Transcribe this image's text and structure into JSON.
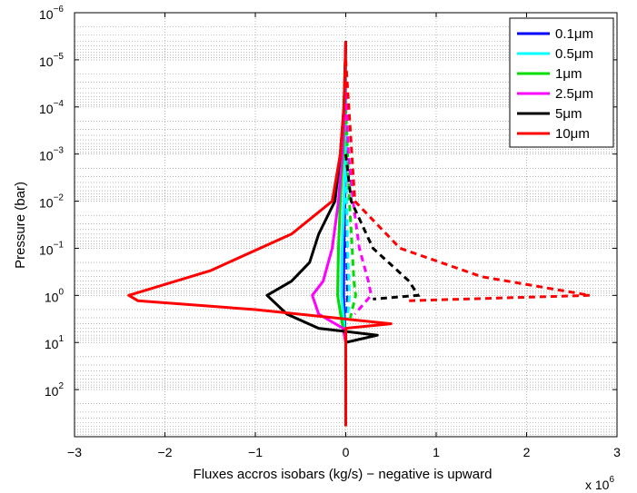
{
  "chart_data": {
    "type": "line",
    "xlabel": "Fluxes accros isobars  (kg/s)  − negative is upward",
    "ylabel": "Pressure (bar)",
    "x_multiplier_label": "x 10",
    "x_multiplier_exp": "6",
    "x_multiplier": 1000000,
    "xlim": [
      -3000000,
      3000000
    ],
    "ylim_bar": [
      1e-06,
      1000
    ],
    "y_scale": "log",
    "y_reversed": true,
    "grid": true,
    "x_ticks": [
      {
        "value": -3000000,
        "label": "−3"
      },
      {
        "value": -2000000,
        "label": "−2"
      },
      {
        "value": -1000000,
        "label": "−1"
      },
      {
        "value": 0,
        "label": "0"
      },
      {
        "value": 1000000,
        "label": "1"
      },
      {
        "value": 2000000,
        "label": "2"
      },
      {
        "value": 3000000,
        "label": "3"
      }
    ],
    "y_ticks": [
      {
        "value": 1e-06,
        "base": "10",
        "exp": "−6"
      },
      {
        "value": 1e-05,
        "base": "10",
        "exp": "−5"
      },
      {
        "value": 0.0001,
        "base": "10",
        "exp": "−4"
      },
      {
        "value": 0.001,
        "base": "10",
        "exp": "−3"
      },
      {
        "value": 0.01,
        "base": "10",
        "exp": "−2"
      },
      {
        "value": 0.1,
        "base": "10",
        "exp": "−1"
      },
      {
        "value": 1,
        "base": "10",
        "exp": "0"
      },
      {
        "value": 10,
        "base": "10",
        "exp": "1"
      },
      {
        "value": 100,
        "base": "10",
        "exp": "2"
      }
    ],
    "legend_position": "top-right",
    "series": [
      {
        "name": "0.1μm",
        "color": "#0000ff",
        "solid": [
          [
            0,
            4e-06
          ],
          [
            0,
            0.001
          ],
          [
            -10000,
            0.01
          ],
          [
            -20000,
            0.1
          ],
          [
            -25000,
            1
          ],
          [
            -15000,
            3
          ],
          [
            0,
            10
          ],
          [
            0,
            50
          ],
          [
            0,
            600
          ]
        ],
        "dashed": [
          [
            0,
            0.001
          ],
          [
            10000,
            0.1
          ],
          [
            20000,
            1
          ],
          [
            10000,
            3
          ]
        ]
      },
      {
        "name": "0.5μm",
        "color": "#00ffff",
        "solid": [
          [
            0,
            4e-06
          ],
          [
            0,
            0.001
          ],
          [
            -20000,
            0.01
          ],
          [
            -40000,
            0.1
          ],
          [
            -45000,
            1
          ],
          [
            -25000,
            3
          ],
          [
            0,
            10
          ],
          [
            0,
            600
          ]
        ],
        "dashed": [
          [
            0,
            0.001
          ],
          [
            20000,
            0.1
          ],
          [
            40000,
            1
          ],
          [
            20000,
            3
          ]
        ]
      },
      {
        "name": "1μm",
        "color": "#00dd00",
        "solid": [
          [
            0,
            4e-06
          ],
          [
            -5000,
            0.0001
          ],
          [
            -30000,
            0.001
          ],
          [
            -60000,
            0.01
          ],
          [
            -80000,
            0.1
          ],
          [
            -90000,
            1
          ],
          [
            -50000,
            3
          ],
          [
            0,
            10
          ],
          [
            0,
            600
          ]
        ],
        "dashed": [
          [
            0,
            0.0001
          ],
          [
            20000,
            0.001
          ],
          [
            40000,
            0.01
          ],
          [
            70000,
            0.1
          ],
          [
            90000,
            0.5
          ],
          [
            110000,
            1
          ],
          [
            50000,
            3
          ]
        ]
      },
      {
        "name": "2.5μm",
        "color": "#ff00ff",
        "solid": [
          [
            0,
            4e-06
          ],
          [
            -10000,
            0.0001
          ],
          [
            -40000,
            0.001
          ],
          [
            -80000,
            0.01
          ],
          [
            -150000,
            0.1
          ],
          [
            -250000,
            0.5
          ],
          [
            -370000,
            1
          ],
          [
            -300000,
            2.5
          ],
          [
            -30000,
            5
          ],
          [
            0,
            10
          ],
          [
            0,
            600
          ]
        ],
        "dashed": [
          [
            0,
            5e-05
          ],
          [
            30000,
            0.001
          ],
          [
            80000,
            0.01
          ],
          [
            150000,
            0.1
          ],
          [
            250000,
            0.5
          ],
          [
            280000,
            1
          ],
          [
            100000,
            2.5
          ]
        ]
      },
      {
        "name": "5μm",
        "color": "#000000",
        "solid": [
          [
            0,
            4e-06
          ],
          [
            -20000,
            0.0001
          ],
          [
            -60000,
            0.001
          ],
          [
            -120000,
            0.01
          ],
          [
            -300000,
            0.05
          ],
          [
            -400000,
            0.2
          ],
          [
            -600000,
            0.5
          ],
          [
            -870000,
            1
          ],
          [
            -650000,
            2.5
          ],
          [
            -300000,
            5
          ],
          [
            350000,
            7
          ],
          [
            0,
            10
          ],
          [
            0,
            600
          ]
        ],
        "dashed": [
          [
            0,
            0.001
          ],
          [
            60000,
            0.01
          ],
          [
            300000,
            0.1
          ],
          [
            700000,
            0.5
          ],
          [
            800000,
            1
          ],
          [
            300000,
            1.2
          ]
        ]
      },
      {
        "name": "10μm",
        "color": "#ff0000",
        "solid": [
          [
            0,
            4e-06
          ],
          [
            -20000,
            0.0001
          ],
          [
            -60000,
            0.001
          ],
          [
            -150000,
            0.01
          ],
          [
            -600000,
            0.05
          ],
          [
            -1500000,
            0.3
          ],
          [
            -2400000,
            1
          ],
          [
            -2300000,
            1.3
          ],
          [
            -1000000,
            2
          ],
          [
            500000,
            4
          ],
          [
            0,
            5
          ],
          [
            0,
            10
          ],
          [
            0,
            600
          ]
        ],
        "dashed": [
          [
            0,
            1e-05
          ],
          [
            100000,
            0.01
          ],
          [
            600000,
            0.1
          ],
          [
            1500000,
            0.4
          ],
          [
            2700000,
            1
          ],
          [
            700000,
            1.3
          ]
        ]
      }
    ]
  }
}
